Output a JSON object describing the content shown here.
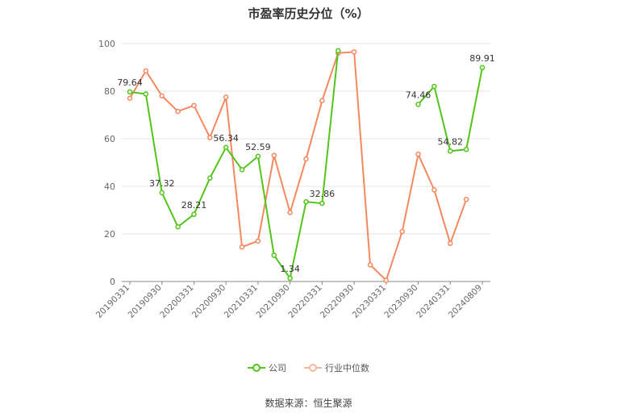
{
  "chart_data": {
    "type": "line",
    "title": "市盈率历史分位（%）",
    "xlabel": "",
    "ylabel": "",
    "ylim": [
      0,
      100
    ],
    "yticks": [
      0,
      20,
      40,
      60,
      80,
      100
    ],
    "x": [
      "20190331",
      "20190630",
      "20190930",
      "20191231",
      "20200331",
      "20200630",
      "20200930",
      "20201231",
      "20210331",
      "20210630",
      "20210930",
      "20211231",
      "20220331",
      "20220630",
      "20220930",
      "20221231",
      "20230331",
      "20230630",
      "20230930",
      "20231231",
      "20240331",
      "20240630",
      "20240809"
    ],
    "xtick_labels": [
      "20190331",
      "20190930",
      "20200331",
      "20200930",
      "20210331",
      "20210930",
      "20220331",
      "20220930",
      "20230331",
      "20230930",
      "20240331",
      "20240809"
    ],
    "series": [
      {
        "name": "公司",
        "color": "#52c41a",
        "values": [
          79.64,
          78.8,
          37.32,
          23.0,
          28.21,
          43.5,
          56.34,
          47.0,
          52.59,
          11.0,
          1.34,
          33.5,
          32.86,
          97.0,
          null,
          null,
          null,
          null,
          74.46,
          82.0,
          54.82,
          55.5,
          89.91
        ]
      },
      {
        "name": "行业中位数",
        "color": "#f4895f",
        "values": [
          77.0,
          88.5,
          78.0,
          71.5,
          74.0,
          60.5,
          77.5,
          14.5,
          17.0,
          53.0,
          29.0,
          51.5,
          76.0,
          96.0,
          96.5,
          7.0,
          0.5,
          21.0,
          53.5,
          38.5,
          16.0,
          34.5,
          null
        ]
      }
    ],
    "data_labels": [
      {
        "series": 0,
        "index": 0,
        "text": "79.64"
      },
      {
        "series": 0,
        "index": 2,
        "text": "37.32"
      },
      {
        "series": 0,
        "index": 4,
        "text": "28.21"
      },
      {
        "series": 0,
        "index": 6,
        "text": "56.34"
      },
      {
        "series": 0,
        "index": 8,
        "text": "52.59"
      },
      {
        "series": 0,
        "index": 10,
        "text": "1.34"
      },
      {
        "series": 0,
        "index": 12,
        "text": "32.86"
      },
      {
        "series": 0,
        "index": 18,
        "text": "74.46"
      },
      {
        "series": 0,
        "index": 20,
        "text": "54.82"
      },
      {
        "series": 0,
        "index": 22,
        "text": "89.91"
      }
    ],
    "legend_position": "bottom",
    "grid": true
  },
  "source": "数据来源：恒生聚源"
}
